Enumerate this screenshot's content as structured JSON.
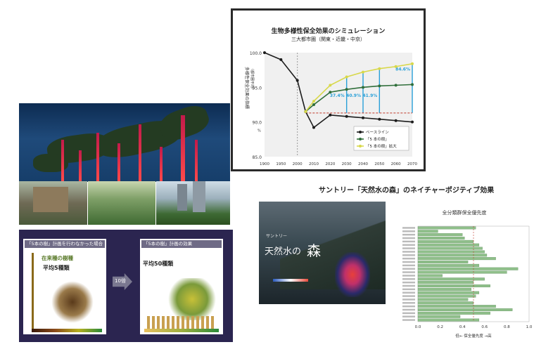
{
  "line_chart": {
    "title": "生物多様性保全効果のシミュレーション",
    "subtitle": "三大都市圏（関東・近畿・中京）",
    "ylabel": "多様性保全効果の指標",
    "ylabel_sub": "（都市圏平均）",
    "unit": "%",
    "y_ticks": [
      "100.0",
      "95.0",
      "90.0",
      "85.0"
    ],
    "x_ticks": [
      "1900",
      "1950",
      "2000",
      "2010",
      "2020",
      "2030",
      "2040",
      "2050",
      "2060",
      "2070"
    ],
    "legend": [
      "ベースライン",
      "「5 本の樹」",
      "「5 本の樹」拡大"
    ],
    "annotations": [
      "37.4%",
      "40.9%",
      "41.9%",
      "84.6%"
    ]
  },
  "chart_data": {
    "type": "line",
    "x": [
      1900,
      1950,
      2000,
      2005,
      2010,
      2020,
      2030,
      2040,
      2050,
      2060,
      2070
    ],
    "ylim": [
      85,
      100
    ],
    "series": [
      {
        "name": "ベースライン",
        "values": [
          100.0,
          99.0,
          96.0,
          91.5,
          89.2,
          91.0,
          90.8,
          90.6,
          90.4,
          90.2,
          90.0
        ]
      },
      {
        "name": "「5 本の樹」",
        "values": [
          null,
          null,
          null,
          91.5,
          92.5,
          94.3,
          94.7,
          95.0,
          95.2,
          95.3,
          95.4
        ]
      },
      {
        "name": "「5 本の樹」拡大",
        "values": [
          null,
          null,
          null,
          91.5,
          93.0,
          95.3,
          96.5,
          97.2,
          97.7,
          98.0,
          98.4
        ]
      }
    ],
    "colors": {
      "baseline": "#1c1c1c",
      "five_trees": "#2f6e3a",
      "expanded": "#d8d84a",
      "callout": "#29a0d8"
    }
  },
  "compare": {
    "left_head": "「5本の樹」計画を行わなかった場合",
    "left_sub": "在来種の樹種",
    "left_avg": "平均5種類",
    "right_head": "「5本の樹」計画の効果",
    "right_avg": "平均50種類",
    "arrow_label": "10倍"
  },
  "nature_positive": {
    "title": "サントリー「天然水の森」のネイチャーポジティブ効果",
    "cover_small": "サントリー",
    "cover_title": "天然水の",
    "cover_kanji": "森",
    "bar_title": "全分類群保全優先度",
    "bar_xlabel": "低← 保全優先度 →高",
    "bar_x_ticks": [
      "0.0",
      "0.2",
      "0.4",
      "0.6",
      "0.8",
      "1.0"
    ],
    "bar_values": [
      0.52,
      0.18,
      0.4,
      0.42,
      0.5,
      0.55,
      0.58,
      0.6,
      0.62,
      0.7,
      0.45,
      0.55,
      0.9,
      0.8,
      0.22,
      0.6,
      0.5,
      0.65,
      0.48,
      0.55,
      0.52,
      0.45,
      0.5,
      0.7,
      0.85,
      0.65,
      0.38,
      0.55
    ],
    "bar_color": "#8fbf8a"
  }
}
